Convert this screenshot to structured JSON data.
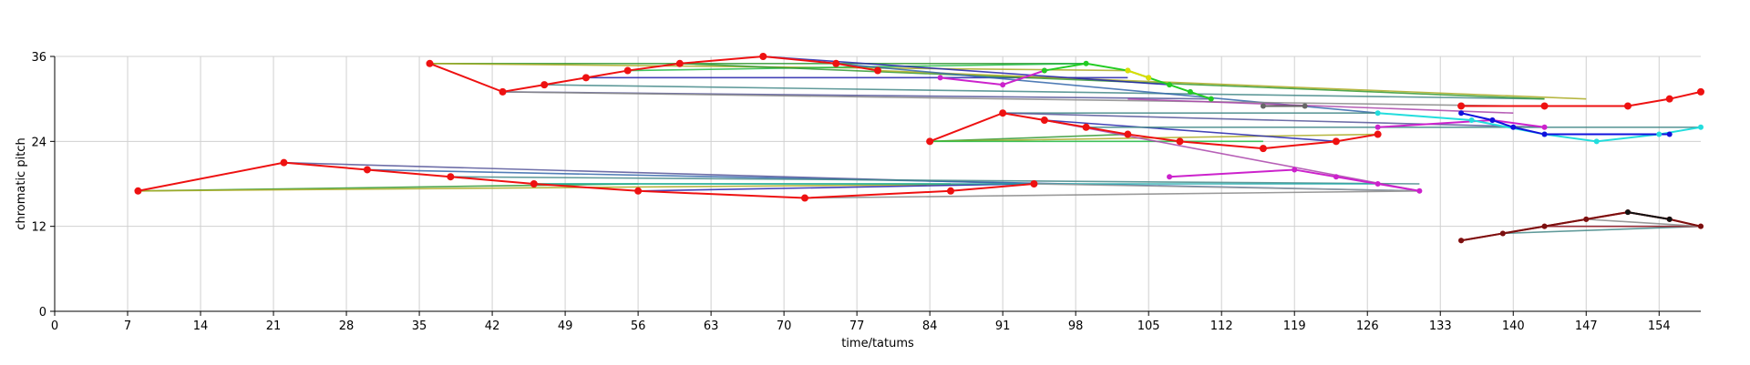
{
  "chart_data": {
    "type": "line",
    "title": "",
    "xlabel": "time/tatums",
    "ylabel": "chromatic pitch",
    "xlim": [
      0,
      158
    ],
    "ylim": [
      0,
      36
    ],
    "xticks": [
      0,
      7,
      14,
      21,
      28,
      35,
      42,
      49,
      56,
      63,
      70,
      77,
      84,
      91,
      98,
      105,
      112,
      119,
      126,
      133,
      140,
      147,
      154
    ],
    "yticks": [
      0,
      12,
      24,
      36
    ],
    "grid": true,
    "legend": "none",
    "main_series_color": "#ee1111",
    "series": [
      {
        "color": "#ee1111",
        "points": [
          [
            8,
            17
          ],
          [
            22,
            21
          ],
          [
            30,
            20
          ],
          [
            38,
            19
          ],
          [
            46,
            18
          ],
          [
            56,
            17
          ],
          [
            72,
            16
          ],
          [
            86,
            17
          ],
          [
            94,
            18
          ]
        ]
      },
      {
        "color": "#ee1111",
        "points": [
          [
            36,
            35
          ],
          [
            43,
            31
          ],
          [
            47,
            32
          ],
          [
            51,
            33
          ],
          [
            55,
            34
          ],
          [
            60,
            35
          ],
          [
            68,
            36
          ],
          [
            75,
            35
          ],
          [
            79,
            34
          ]
        ]
      },
      {
        "color": "#ee1111",
        "points": [
          [
            84,
            24
          ],
          [
            91,
            28
          ],
          [
            95,
            27
          ],
          [
            99,
            26
          ],
          [
            103,
            25
          ],
          [
            108,
            24
          ],
          [
            116,
            23
          ],
          [
            123,
            24
          ],
          [
            127,
            25
          ]
        ]
      },
      {
        "color": "#ee1111",
        "points": [
          [
            135,
            29
          ],
          [
            143,
            29
          ],
          [
            151,
            29
          ],
          [
            155,
            30
          ],
          [
            158,
            31
          ]
        ]
      },
      {
        "color": "#ee2222",
        "points": [
          [
            135,
            10
          ],
          [
            139,
            11
          ],
          [
            143,
            12
          ],
          [
            147,
            13
          ],
          [
            151,
            14
          ],
          [
            155,
            13
          ],
          [
            158,
            12
          ]
        ]
      },
      {
        "color": "#7a1010",
        "points": [
          [
            135,
            10
          ],
          [
            139,
            11
          ],
          [
            143,
            12
          ],
          [
            147,
            13
          ],
          [
            151,
            14
          ],
          [
            155,
            13
          ],
          [
            158,
            12
          ]
        ]
      },
      {
        "color": "#cc22cc",
        "points": [
          [
            107,
            19
          ],
          [
            119,
            20
          ],
          [
            123,
            19
          ],
          [
            127,
            18
          ],
          [
            131,
            17
          ]
        ]
      },
      {
        "color": "#cc22cc",
        "points": [
          [
            85,
            33
          ],
          [
            91,
            32
          ],
          [
            95,
            34
          ]
        ]
      },
      {
        "color": "#cc22cc",
        "points": [
          [
            127,
            26
          ],
          [
            138,
            27
          ],
          [
            143,
            26
          ]
        ]
      },
      {
        "color": "#22cc22",
        "points": [
          [
            95,
            34
          ],
          [
            99,
            35
          ],
          [
            103,
            34
          ],
          [
            105,
            33
          ],
          [
            107,
            32
          ],
          [
            109,
            31
          ],
          [
            111,
            30
          ]
        ]
      },
      {
        "color": "#dddd00",
        "points": [
          [
            103,
            34
          ],
          [
            105,
            33
          ]
        ]
      },
      {
        "color": "#22dddd",
        "points": [
          [
            127,
            28
          ],
          [
            136,
            27
          ],
          [
            143,
            25
          ],
          [
            148,
            24
          ],
          [
            154,
            25
          ],
          [
            158,
            26
          ]
        ]
      },
      {
        "color": "#1111dd",
        "points": [
          [
            135,
            28
          ],
          [
            138,
            27
          ],
          [
            140,
            26
          ],
          [
            143,
            25
          ],
          [
            155,
            25
          ]
        ]
      },
      {
        "color": "#111111",
        "points": [
          [
            151,
            14
          ],
          [
            155,
            13
          ]
        ]
      },
      {
        "color": "#666666",
        "points": [
          [
            116,
            29
          ],
          [
            120,
            29
          ]
        ]
      }
    ],
    "transition_lines": [
      {
        "color": "#339933",
        "x": [
          8,
          56
        ],
        "y": [
          17,
          18
        ]
      },
      {
        "color": "#aaaa22",
        "x": [
          8,
          94
        ],
        "y": [
          17,
          18
        ]
      },
      {
        "color": "#555599",
        "x": [
          22,
          94
        ],
        "y": [
          21,
          18
        ]
      },
      {
        "color": "#3366aa",
        "x": [
          30,
          131
        ],
        "y": [
          20,
          17
        ]
      },
      {
        "color": "#448888",
        "x": [
          38,
          131
        ],
        "y": [
          19,
          18
        ]
      },
      {
        "color": "#22bb44",
        "x": [
          46,
          86
        ],
        "y": [
          18,
          18
        ]
      },
      {
        "color": "#2222aa",
        "x": [
          56,
          94
        ],
        "y": [
          17,
          18
        ]
      },
      {
        "color": "#888888",
        "x": [
          72,
          131
        ],
        "y": [
          16,
          17
        ]
      },
      {
        "color": "#22aaaa",
        "x": [
          46,
          127
        ],
        "y": [
          18,
          18
        ]
      },
      {
        "color": "#999999",
        "x": [
          94,
          131
        ],
        "y": [
          18,
          17
        ]
      },
      {
        "color": "#339933",
        "x": [
          36,
          99
        ],
        "y": [
          35,
          35
        ]
      },
      {
        "color": "#aaaa22",
        "x": [
          36,
          103
        ],
        "y": [
          35,
          34
        ]
      },
      {
        "color": "#555599",
        "x": [
          43,
          111
        ],
        "y": [
          31,
          30
        ]
      },
      {
        "color": "#2222aa",
        "x": [
          51,
          103
        ],
        "y": [
          33,
          33
        ]
      },
      {
        "color": "#22bb44",
        "x": [
          55,
          99
        ],
        "y": [
          34,
          35
        ]
      },
      {
        "color": "#448888",
        "x": [
          47,
          143
        ],
        "y": [
          32,
          30
        ]
      },
      {
        "color": "#339933",
        "x": [
          60,
          143
        ],
        "y": [
          35,
          30
        ]
      },
      {
        "color": "#aaaa22",
        "x": [
          79,
          147
        ],
        "y": [
          34,
          30
        ]
      },
      {
        "color": "#2222aa",
        "x": [
          68,
          107
        ],
        "y": [
          36,
          32
        ]
      },
      {
        "color": "#3366aa",
        "x": [
          75,
          127
        ],
        "y": [
          35,
          28
        ]
      },
      {
        "color": "#888888",
        "x": [
          43,
          140
        ],
        "y": [
          31,
          29
        ]
      },
      {
        "color": "#339933",
        "x": [
          84,
          103
        ],
        "y": [
          24,
          25
        ]
      },
      {
        "color": "#aaaa22",
        "x": [
          84,
          127
        ],
        "y": [
          24,
          25
        ]
      },
      {
        "color": "#448888",
        "x": [
          91,
          127
        ],
        "y": [
          28,
          28
        ]
      },
      {
        "color": "#2222aa",
        "x": [
          95,
          123
        ],
        "y": [
          27,
          24
        ]
      },
      {
        "color": "#22bb44",
        "x": [
          84,
          116
        ],
        "y": [
          24,
          24
        ]
      },
      {
        "color": "#555599",
        "x": [
          91,
          143
        ],
        "y": [
          28,
          26
        ]
      },
      {
        "color": "#448888",
        "x": [
          99,
          158
        ],
        "y": [
          26,
          26
        ]
      },
      {
        "color": "#aa44aa",
        "x": [
          95,
          131
        ],
        "y": [
          27,
          17
        ]
      },
      {
        "color": "#aa44aa",
        "x": [
          103,
          140
        ],
        "y": [
          30,
          28
        ]
      },
      {
        "color": "#448888",
        "x": [
          139,
          158
        ],
        "y": [
          11,
          12
        ]
      },
      {
        "color": "#1166aa",
        "x": [
          143,
          158
        ],
        "y": [
          12,
          12
        ]
      },
      {
        "color": "#aa2222",
        "x": [
          143,
          158
        ],
        "y": [
          12,
          12
        ]
      },
      {
        "color": "#888888",
        "x": [
          147,
          158
        ],
        "y": [
          13,
          12
        ]
      }
    ]
  }
}
